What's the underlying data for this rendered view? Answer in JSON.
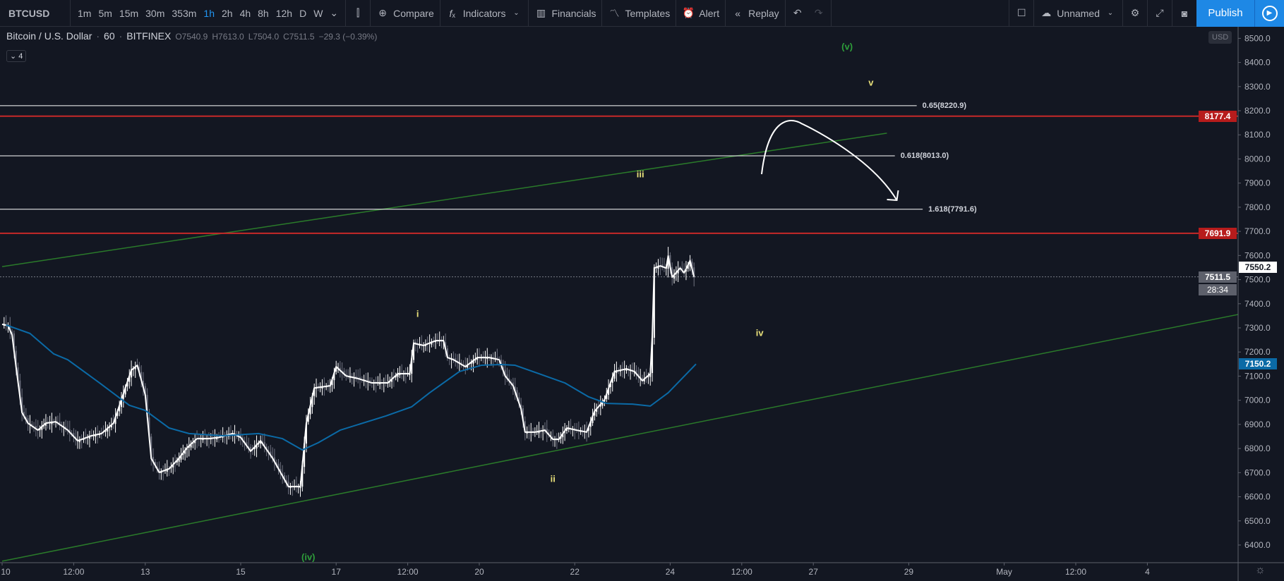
{
  "toolbar": {
    "symbol": "BTCUSD",
    "intervals": [
      "1m",
      "5m",
      "15m",
      "30m",
      "353m",
      "1h",
      "2h",
      "4h",
      "8h",
      "12h",
      "D",
      "W"
    ],
    "active_interval": "1h",
    "compare": "Compare",
    "indicators": "Indicators",
    "financials": "Financials",
    "templates": "Templates",
    "alert": "Alert",
    "replay": "Replay",
    "layout_name": "Unnamed",
    "publish": "Publish"
  },
  "legend": {
    "title": "Bitcoin / U.S. Dollar",
    "interval": "60",
    "exchange": "BITFINEX",
    "open": "O7540.9",
    "high": "H7613.0",
    "low": "L7504.0",
    "close": "C7511.5",
    "change": "−29.3 (−0.39%)",
    "indicator_count": "4"
  },
  "price_axis": {
    "currency": "USD",
    "ticks": [
      "8500.0",
      "8400.0",
      "8300.0",
      "8200.0",
      "8100.0",
      "8000.0",
      "7900.0",
      "7800.0",
      "7700.0",
      "7600.0",
      "7500.0",
      "7400.0",
      "7300.0",
      "7200.0",
      "7100.0",
      "7000.0",
      "6900.0",
      "6800.0",
      "6700.0",
      "6600.0",
      "6500.0",
      "6400.0"
    ],
    "badges": [
      {
        "text": "8177.4",
        "price": 8177.4,
        "bg": "#b71c1c",
        "fg": "#ffffff"
      },
      {
        "text": "7691.9",
        "price": 7691.9,
        "bg": "#b71c1c",
        "fg": "#ffffff"
      },
      {
        "text": "7550.2",
        "price": 7550.2,
        "bg": "#ffffff",
        "fg": "#131722"
      },
      {
        "text": "7511.5",
        "price": 7511.5,
        "bg": "#5d606b",
        "fg": "#ffffff"
      },
      {
        "text": "7150.2",
        "price": 7150.2,
        "bg": "#0b6aa6",
        "fg": "#ffffff"
      }
    ],
    "countdown": "28:34"
  },
  "time_axis": {
    "ticks": [
      {
        "label": "10",
        "t": "Apr 10 00:00"
      },
      {
        "label": "12:00",
        "t": "Apr 11 12:00"
      },
      {
        "label": "13",
        "t": "Apr 13 00:00"
      },
      {
        "label": "15",
        "t": "Apr 15 00:00"
      },
      {
        "label": "17",
        "t": "Apr 17 00:00"
      },
      {
        "label": "12:00",
        "t": "Apr 18 12:00"
      },
      {
        "label": "20",
        "t": "Apr 20 00:00"
      },
      {
        "label": "22",
        "t": "Apr 22 00:00"
      },
      {
        "label": "24",
        "t": "Apr 24 00:00"
      },
      {
        "label": "12:00",
        "t": "Apr 25 12:00"
      },
      {
        "label": "27",
        "t": "Apr 27 00:00"
      },
      {
        "label": "29",
        "t": "Apr 29 00:00"
      },
      {
        "label": "May",
        "t": "May 1 00:00"
      },
      {
        "label": "12:00",
        "t": "May 2 12:00"
      },
      {
        "label": "4",
        "t": "May 4 00:00"
      }
    ]
  },
  "chart_data": {
    "type": "line",
    "symbol": "BTCUSD",
    "ylim": [
      6330,
      8560
    ],
    "price": [
      [
        "Apr 10 00:00",
        7315
      ],
      [
        "Apr 10 03:00",
        7309
      ],
      [
        "Apr 10 05:00",
        7271
      ],
      [
        "Apr 10 07:00",
        7139
      ],
      [
        "Apr 10 10:00",
        6949
      ],
      [
        "Apr 10 13:00",
        6905
      ],
      [
        "Apr 10 18:00",
        6876
      ],
      [
        "Apr 10 22:00",
        6905
      ],
      [
        "Apr 11 03:00",
        6911
      ],
      [
        "Apr 11 09:00",
        6876
      ],
      [
        "Apr 11 14:00",
        6832
      ],
      [
        "Apr 11 21:00",
        6853
      ],
      [
        "Apr 12 02:00",
        6862
      ],
      [
        "Apr 12 08:00",
        6905
      ],
      [
        "Apr 12 17:00",
        7125
      ],
      [
        "Apr 12 20:00",
        7145
      ],
      [
        "Apr 13 00:00",
        7022
      ],
      [
        "Apr 13 03:00",
        6759
      ],
      [
        "Apr 13 07:00",
        6701
      ],
      [
        "Apr 13 12:00",
        6716
      ],
      [
        "Apr 13 17:00",
        6760
      ],
      [
        "Apr 13 21:00",
        6803
      ],
      [
        "Apr 14 02:00",
        6841
      ],
      [
        "Apr 14 08:00",
        6841
      ],
      [
        "Apr 14 13:00",
        6846
      ],
      [
        "Apr 14 20:00",
        6862
      ],
      [
        "Apr 15 00:00",
        6846
      ],
      [
        "Apr 15 05:00",
        6789
      ],
      [
        "Apr 15 10:00",
        6832
      ],
      [
        "Apr 15 16:00",
        6760
      ],
      [
        "Apr 16 00:00",
        6642
      ],
      [
        "Apr 16 06:00",
        6642
      ],
      [
        "Apr 16 09:00",
        6905
      ],
      [
        "Apr 16 13:00",
        7051
      ],
      [
        "Apr 16 21:00",
        7060
      ],
      [
        "Apr 17 00:00",
        7139
      ],
      [
        "Apr 17 05:00",
        7101
      ],
      [
        "Apr 17 11:00",
        7090
      ],
      [
        "Apr 17 18:00",
        7072
      ],
      [
        "Apr 18 02:00",
        7072
      ],
      [
        "Apr 18 07:00",
        7110
      ],
      [
        "Apr 18 13:00",
        7110
      ],
      [
        "Apr 18 15:00",
        7236
      ],
      [
        "Apr 18 20:00",
        7227
      ],
      [
        "Apr 19 02:00",
        7247
      ],
      [
        "Apr 19 06:00",
        7247
      ],
      [
        "Apr 19 08:00",
        7177
      ],
      [
        "Apr 19 11:00",
        7168
      ],
      [
        "Apr 19 17:00",
        7139
      ],
      [
        "Apr 19 23:00",
        7177
      ],
      [
        "Apr 20 05:00",
        7177
      ],
      [
        "Apr 20 10:00",
        7168
      ],
      [
        "Apr 20 13:00",
        7101
      ],
      [
        "Apr 20 17:00",
        7060
      ],
      [
        "Apr 20 21:00",
        6964
      ],
      [
        "Apr 20 23:00",
        6868
      ],
      [
        "Apr 21 04:00",
        6868
      ],
      [
        "Apr 21 09:00",
        6876
      ],
      [
        "Apr 21 13:00",
        6838
      ],
      [
        "Apr 21 16:00",
        6838
      ],
      [
        "Apr 21 20:00",
        6885
      ],
      [
        "Apr 22 01:00",
        6876
      ],
      [
        "Apr 22 06:00",
        6868
      ],
      [
        "Apr 22 10:00",
        6955
      ],
      [
        "Apr 22 15:00",
        7002
      ],
      [
        "Apr 22 20:00",
        7119
      ],
      [
        "Apr 23 02:00",
        7130
      ],
      [
        "Apr 23 06:00",
        7119
      ],
      [
        "Apr 23 10:00",
        7081
      ],
      [
        "Apr 23 14:00",
        7110
      ],
      [
        "Apr 23 15:00",
        7265
      ],
      [
        "Apr 23 16:00",
        7548
      ],
      [
        "Apr 23 19:00",
        7557
      ],
      [
        "Apr 23 22:00",
        7548
      ],
      [
        "Apr 23 23:00",
        7598
      ],
      [
        "Apr 24 01:00",
        7510
      ],
      [
        "Apr 24 05:00",
        7548
      ],
      [
        "Apr 24 07:00",
        7528
      ],
      [
        "Apr 24 10:00",
        7578
      ],
      [
        "Apr 24 12:00",
        7511.5
      ]
    ],
    "moving_average": [
      [
        "Apr 10 02:00",
        7312
      ],
      [
        "Apr 10 14:00",
        7277
      ],
      [
        "Apr 11 02:00",
        7192
      ],
      [
        "Apr 11 09:00",
        7168
      ],
      [
        "Apr 12 01:00",
        7072
      ],
      [
        "Apr 12 16:00",
        6979
      ],
      [
        "Apr 13 00:00",
        6958
      ],
      [
        "Apr 13 12:00",
        6885
      ],
      [
        "Apr 13 22:00",
        6862
      ],
      [
        "Apr 14 15:00",
        6853
      ],
      [
        "Apr 15 09:00",
        6862
      ],
      [
        "Apr 15 21:00",
        6841
      ],
      [
        "Apr 16 07:00",
        6794
      ],
      [
        "Apr 16 15:00",
        6824
      ],
      [
        "Apr 17 02:00",
        6876
      ],
      [
        "Apr 18 01:00",
        6935
      ],
      [
        "Apr 18 14:00",
        6973
      ],
      [
        "Apr 18 23:00",
        7031
      ],
      [
        "Apr 19 14:00",
        7119
      ],
      [
        "Apr 20 01:00",
        7145
      ],
      [
        "Apr 20 11:00",
        7148
      ],
      [
        "Apr 20 18:00",
        7145
      ],
      [
        "Apr 21 19:00",
        7072
      ],
      [
        "Apr 22 07:00",
        7014
      ],
      [
        "Apr 22 16:00",
        6987
      ],
      [
        "Apr 23 05:00",
        6984
      ],
      [
        "Apr 23 14:00",
        6976
      ],
      [
        "Apr 23 23:00",
        7031
      ],
      [
        "Apr 24 13:00",
        7150.2
      ]
    ],
    "ma_color": "#0b6aa6",
    "horizontal_lines": [
      {
        "price": 8177.4,
        "color": "#c62828"
      },
      {
        "price": 7691.9,
        "color": "#c62828"
      }
    ],
    "fib_lines": [
      {
        "label": "0.65(8220.9)",
        "price": 8220.9,
        "end": "Apr 29 04:00"
      },
      {
        "label": "0.618(8013.0)",
        "price": 8013.0,
        "end": "Apr 28 17:00"
      },
      {
        "label": "1.618(7791.6)",
        "price": 7791.6,
        "end": "Apr 29 07:00"
      }
    ],
    "trend_lines": [
      {
        "from": [
          "Apr 10 00:00",
          6333
        ],
        "to": [
          "May 5 22:00",
          7356
        ],
        "color": "#2a7a2a"
      },
      {
        "from": [
          "Apr 10 00:00",
          7554
        ],
        "to": [
          "Apr 28 13:00",
          8107
        ],
        "color": "#2a7a2a"
      }
    ],
    "projection_arrow": [
      [
        "Apr 25 22:00",
        7937
      ],
      [
        "Apr 26 18:00",
        8147
      ],
      [
        "Apr 27 21:00",
        8019
      ],
      [
        "Apr 28 18:00",
        7829
      ]
    ],
    "wave_labels": [
      {
        "text": "(v)",
        "t": "Apr 27 17:00",
        "price": 8466,
        "color": "#2e9e3a"
      },
      {
        "text": "v",
        "t": "Apr 28 05:00",
        "price": 8317,
        "color": "#e8e07a"
      },
      {
        "text": "iii",
        "t": "Apr 23 09:00",
        "price": 7937,
        "color": "#e8e07a"
      },
      {
        "text": "i",
        "t": "Apr 18 17:00",
        "price": 7358,
        "color": "#e8e07a"
      },
      {
        "text": "iv",
        "t": "Apr 25 21:00",
        "price": 7280,
        "color": "#e8e07a"
      },
      {
        "text": "ii",
        "t": "Apr 21 13:00",
        "price": 6675,
        "color": "#e8e07a"
      },
      {
        "text": "(iv)",
        "t": "Apr 16 10:00",
        "price": 6350,
        "color": "#2e9e3a"
      }
    ],
    "last_price": 7511.5
  }
}
